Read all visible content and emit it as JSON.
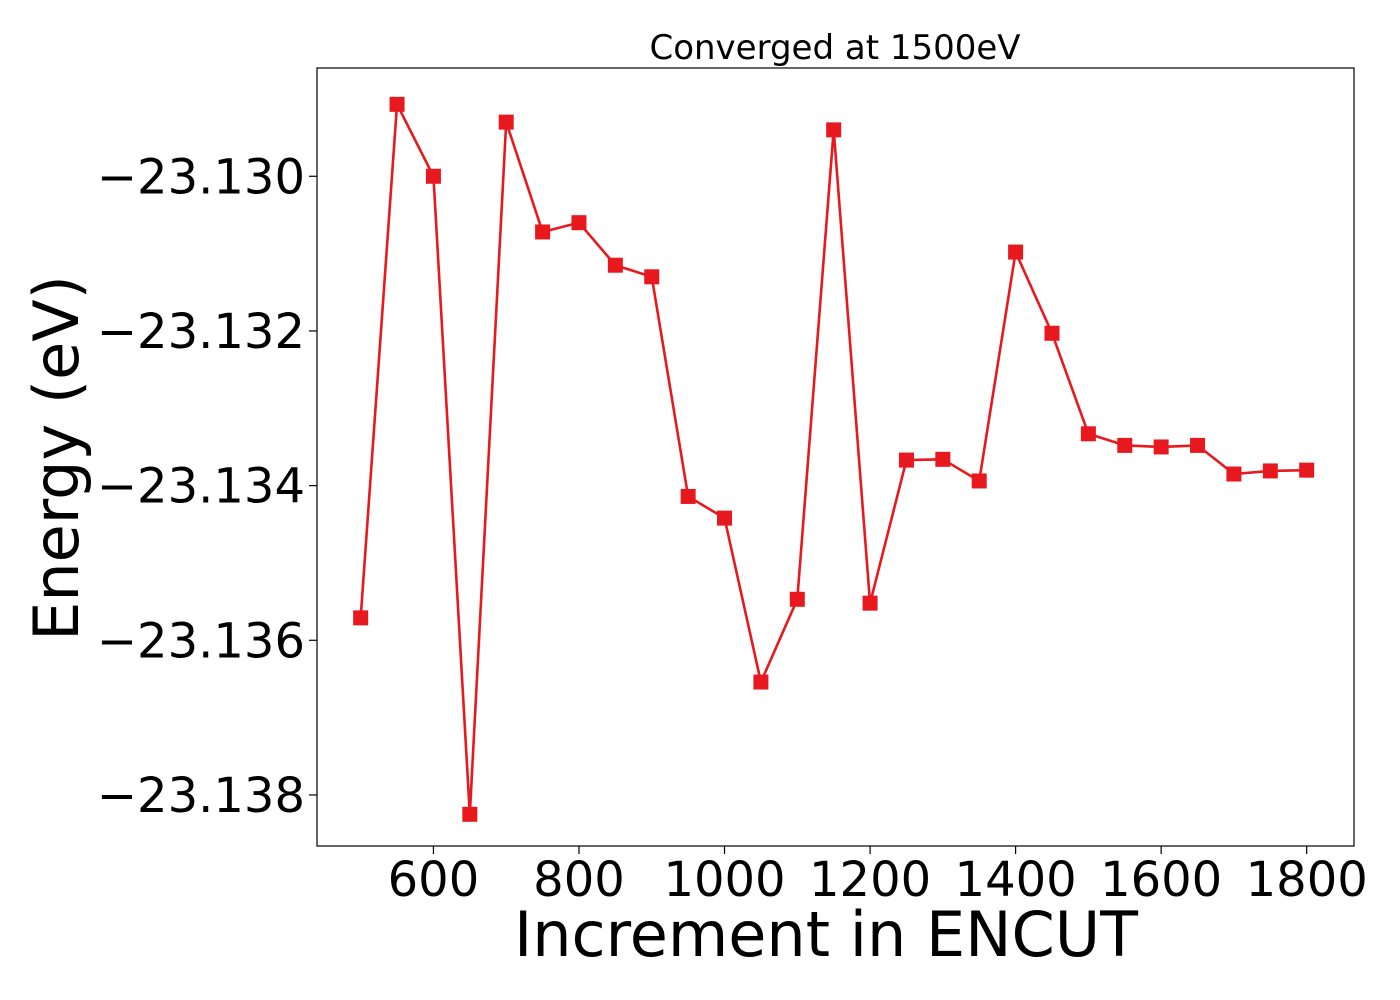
{
  "chart_data": {
    "type": "line",
    "title": "Converged at 1500eV",
    "xlabel": "Increment in ENCUT",
    "ylabel": "Energy (eV)",
    "xlim": [
      440,
      1865
    ],
    "ylim": [
      -23.13866,
      -23.1286
    ],
    "xticks": [
      600,
      800,
      1000,
      1200,
      1400,
      1600,
      1800
    ],
    "xtick_labels": [
      "600",
      "800",
      "1000",
      "1200",
      "1400",
      "1600",
      "1800"
    ],
    "yticks": [
      -23.13,
      -23.132,
      -23.134,
      -23.136,
      -23.138
    ],
    "ytick_labels": [
      "−23.130",
      "−23.132",
      "−23.134",
      "−23.136",
      "−23.138"
    ],
    "grid": false,
    "legend": "none",
    "marker": "square",
    "color": "#e8191e",
    "series": [
      {
        "x": [
          500,
          550,
          600,
          650,
          700,
          750,
          800,
          850,
          900,
          950,
          1000,
          1050,
          1100,
          1150,
          1200,
          1250,
          1300,
          1350,
          1400,
          1450,
          1500,
          1550,
          1600,
          1650,
          1700,
          1750,
          1800
        ],
        "values": [
          -23.13571,
          -23.12907,
          -23.13,
          -23.13825,
          -23.1293,
          -23.13072,
          -23.1306,
          -23.13115,
          -23.1313,
          -23.13414,
          -23.13442,
          -23.13654,
          -23.13547,
          -23.1294,
          -23.13552,
          -23.13367,
          -23.13366,
          -23.13394,
          -23.13098,
          -23.13203,
          -23.13333,
          -23.13348,
          -23.1335,
          -23.13348,
          -23.13385,
          -23.13381,
          -23.1338
        ]
      }
    ]
  }
}
